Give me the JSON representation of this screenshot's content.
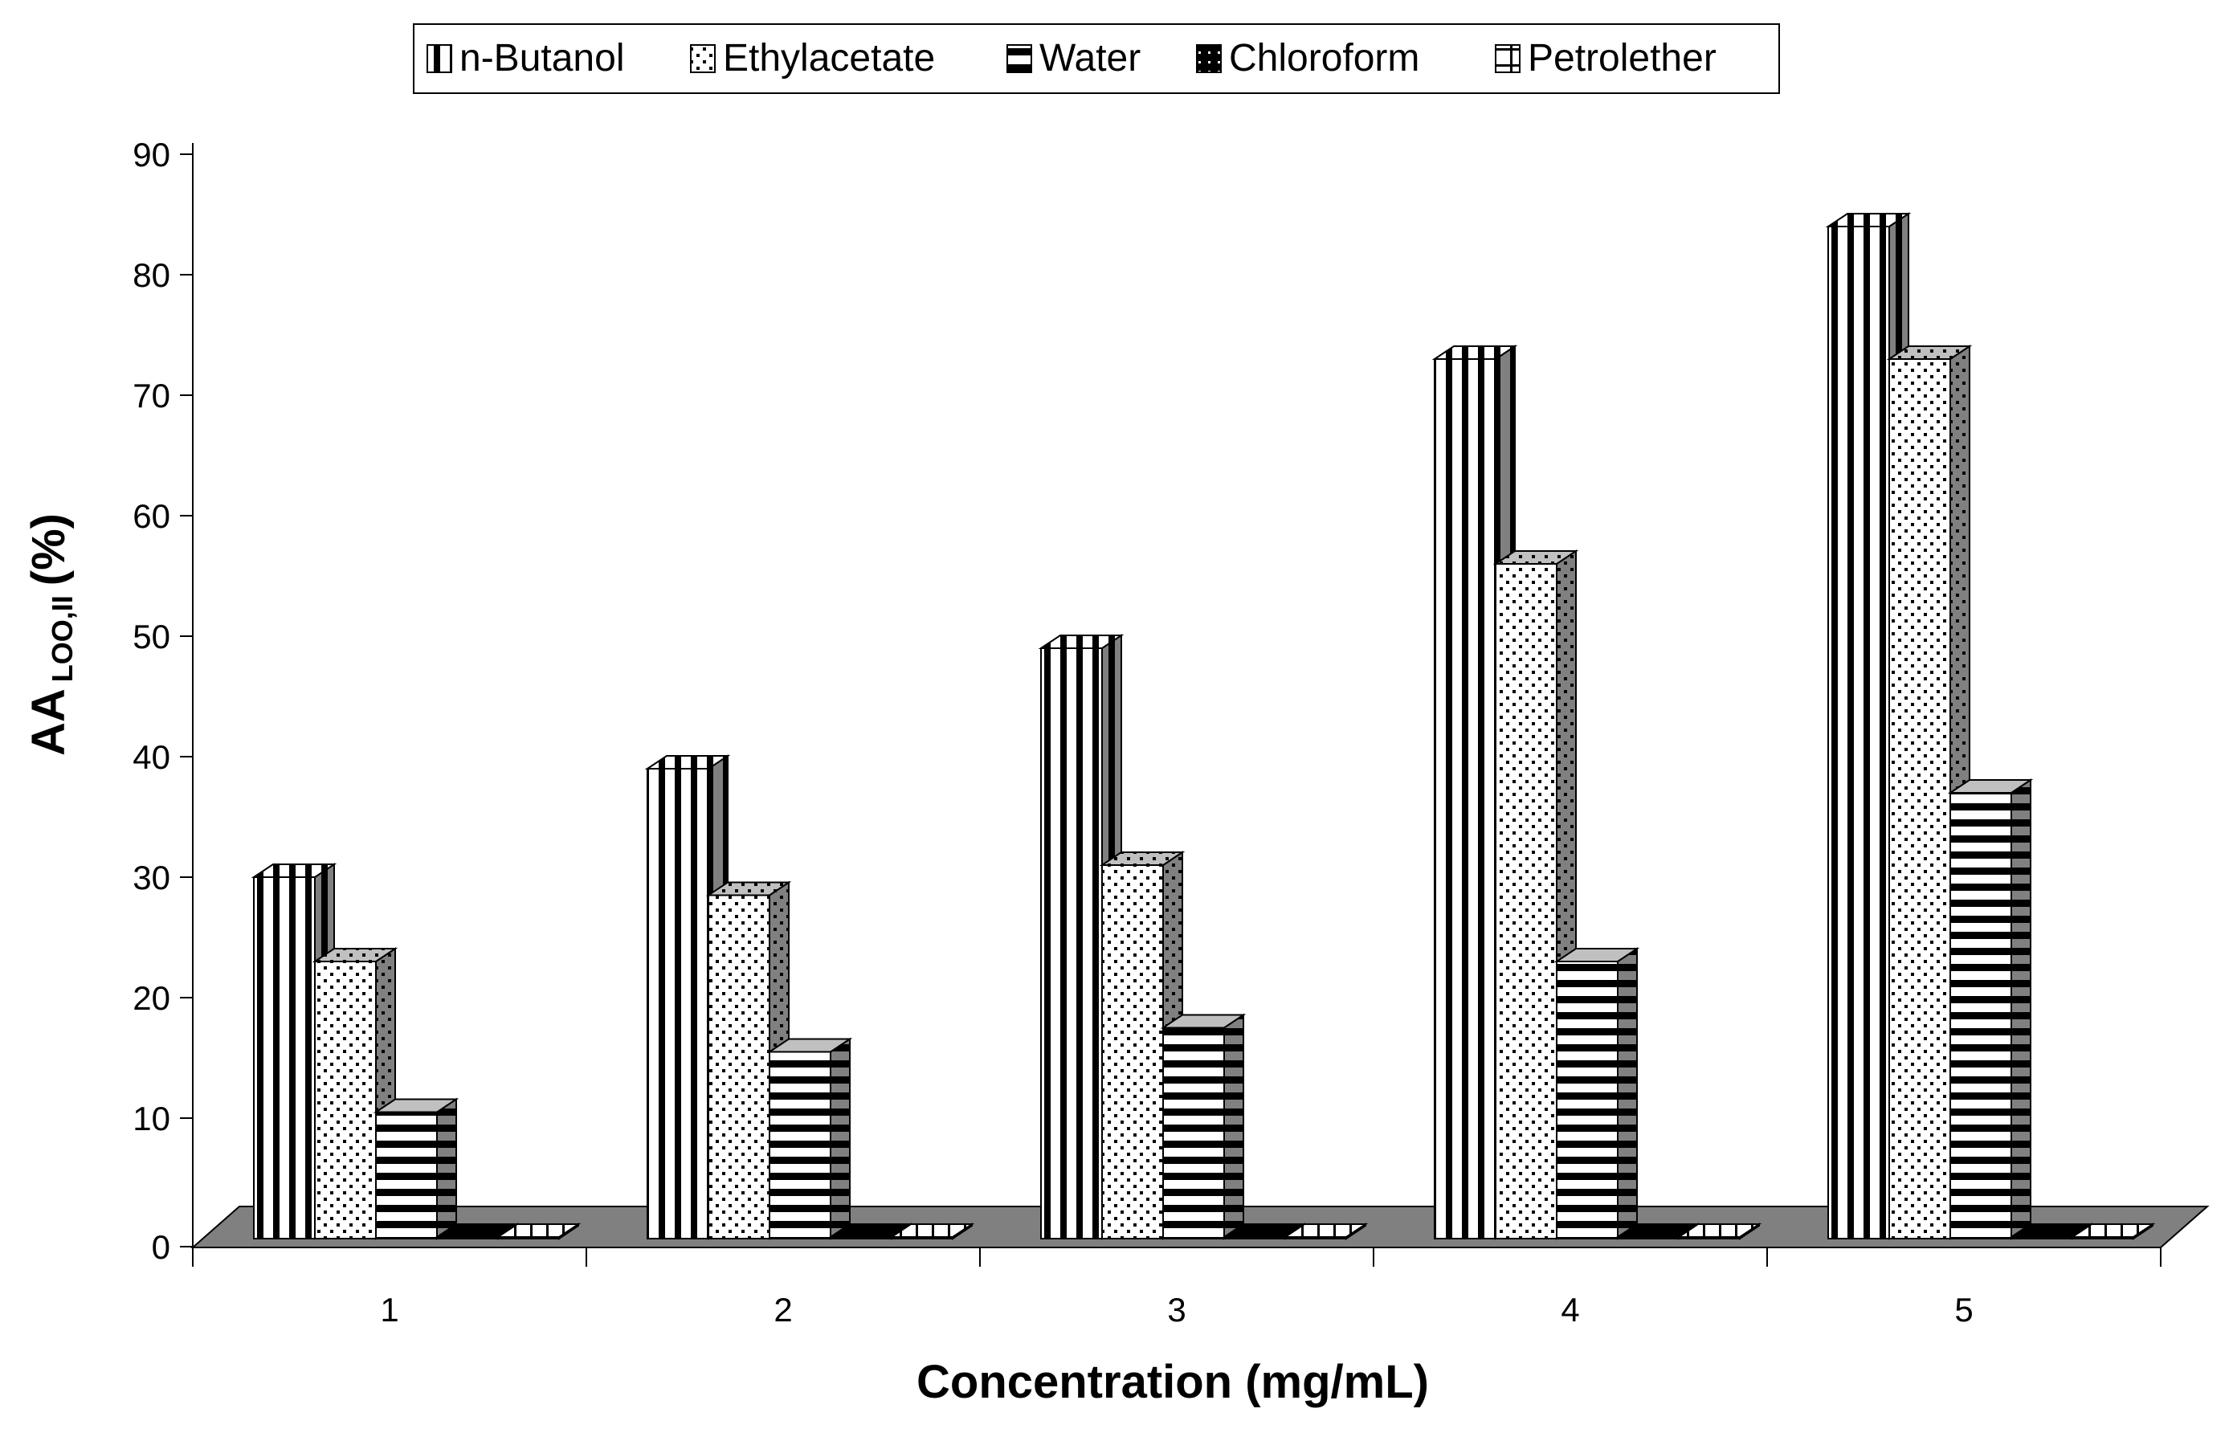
{
  "chart_data": {
    "type": "bar",
    "title": "",
    "xlabel": "Concentration (mg/mL)",
    "ylabel_main": "AA",
    "ylabel_sub": "LOO,II",
    "ylabel_unit": "(%)",
    "ylim": [
      0,
      90
    ],
    "yticks": [
      0,
      10,
      20,
      30,
      40,
      50,
      60,
      70,
      80,
      90
    ],
    "categories": [
      "1",
      "2",
      "3",
      "4",
      "5"
    ],
    "legend_position": "top",
    "series": [
      {
        "name": "n-Butanol",
        "pattern": "vertical",
        "values": [
          30,
          39,
          49,
          73,
          84
        ]
      },
      {
        "name": "Ethylacetate",
        "pattern": "dots",
        "values": [
          23,
          28.5,
          31,
          56,
          73
        ]
      },
      {
        "name": "Water",
        "pattern": "horizontal",
        "values": [
          10.5,
          15.5,
          17.5,
          23,
          37
        ]
      },
      {
        "name": "Chloroform",
        "pattern": "dark",
        "values": [
          0,
          0,
          0,
          0,
          0
        ]
      },
      {
        "name": "Petrolether",
        "pattern": "grid",
        "values": [
          0,
          0,
          0,
          0,
          0
        ]
      }
    ],
    "colors": {
      "floor": "#808080",
      "side_shade": "#808080",
      "top_shade": "#c0c0c0"
    }
  }
}
